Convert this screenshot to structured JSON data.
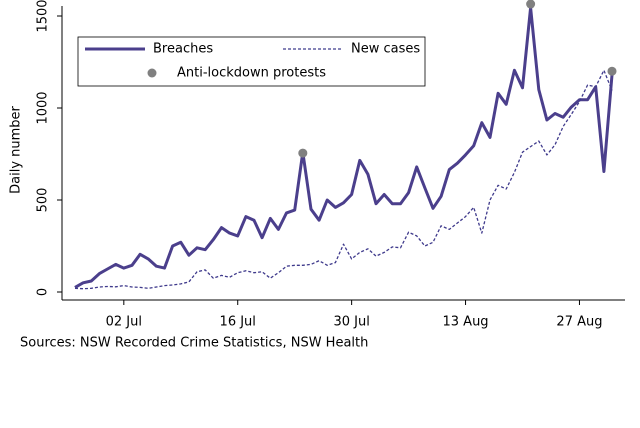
{
  "chart_data": {
    "type": "line",
    "y_label": "Daily number",
    "source": "Sources: NSW Recorded Crime Statistics, NSW Health",
    "categories": [
      null,
      null,
      null,
      null,
      null,
      null,
      "02 Jul",
      null,
      null,
      null,
      null,
      null,
      null,
      null,
      null,
      null,
      null,
      null,
      null,
      null,
      "16 Jul",
      null,
      null,
      null,
      null,
      null,
      null,
      null,
      null,
      null,
      null,
      null,
      null,
      null,
      "30 Jul",
      null,
      null,
      null,
      null,
      null,
      null,
      null,
      null,
      null,
      null,
      null,
      null,
      null,
      "13 Aug",
      null,
      null,
      null,
      null,
      null,
      null,
      null,
      null,
      null,
      null,
      null,
      null,
      null,
      "27 Aug",
      null,
      null,
      null,
      null
    ],
    "series": [
      {
        "name": "Breaches",
        "color": "#4b3f8c",
        "style": "solid",
        "values": [
          25,
          50,
          60,
          100,
          125,
          150,
          130,
          145,
          205,
          180,
          140,
          130,
          250,
          270,
          200,
          240,
          230,
          285,
          350,
          320,
          305,
          410,
          390,
          295,
          400,
          340,
          430,
          445,
          760,
          450,
          390,
          500,
          460,
          485,
          530,
          715,
          640,
          480,
          530,
          480,
          480,
          540,
          680,
          565,
          455,
          520,
          665,
          700,
          745,
          795,
          920,
          840,
          1080,
          1020,
          1205,
          1110,
          1545,
          1100,
          935,
          970,
          950,
          1005,
          1045,
          1045,
          1115,
          655,
          1180
        ]
      },
      {
        "name": "New cases",
        "color": "#3f3a8c",
        "style": "dashed",
        "values": [
          20,
          18,
          20,
          27,
          30,
          28,
          35,
          27,
          25,
          20,
          27,
          35,
          38,
          44,
          55,
          110,
          120,
          75,
          90,
          80,
          105,
          115,
          105,
          110,
          75,
          105,
          140,
          145,
          145,
          150,
          170,
          145,
          160,
          260,
          180,
          215,
          235,
          195,
          215,
          245,
          240,
          325,
          305,
          250,
          270,
          360,
          340,
          375,
          410,
          460,
          320,
          500,
          580,
          560,
          650,
          760,
          790,
          820,
          745,
          800,
          900,
          965,
          1035,
          1125,
          1115,
          1205,
          1095
        ]
      },
      {
        "name": "Anti-lockdown protests",
        "color": "#808080",
        "style": "marker",
        "values": [
          null,
          null,
          null,
          null,
          null,
          null,
          null,
          null,
          null,
          null,
          null,
          null,
          null,
          null,
          null,
          null,
          null,
          null,
          null,
          null,
          null,
          null,
          null,
          null,
          null,
          null,
          null,
          null,
          755,
          null,
          null,
          null,
          null,
          null,
          null,
          null,
          null,
          null,
          null,
          null,
          null,
          null,
          null,
          null,
          null,
          null,
          null,
          null,
          null,
          null,
          null,
          null,
          null,
          null,
          null,
          null,
          1565,
          null,
          null,
          null,
          null,
          null,
          null,
          null,
          null,
          null,
          1200
        ]
      }
    ],
    "ylim": [
      0,
      1500
    ],
    "yticks": [
      0,
      500,
      1000,
      1500
    ],
    "grid": false
  }
}
